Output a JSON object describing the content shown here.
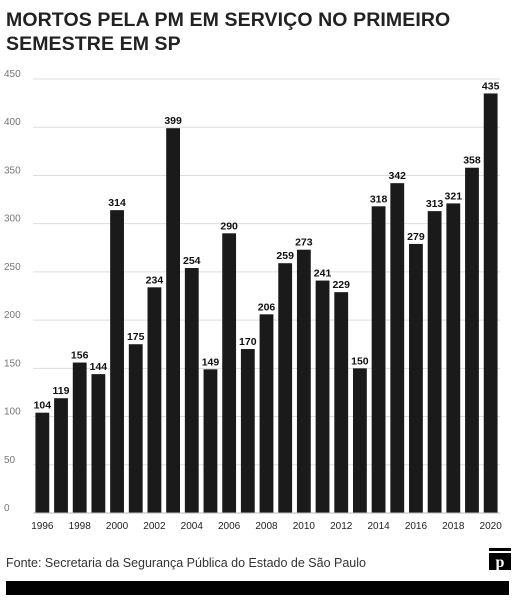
{
  "title": "MORTOS PELA PM EM SERVIÇO NO PRIMEIRO SEMESTRE EM SP",
  "source": "Fonte: Secretaria da Segurança Pública do Estado de São Paulo",
  "logo_letter": "p",
  "colors": {
    "bar": "#1a1a1a",
    "grid": "#dddddd",
    "footer": "#000000"
  },
  "chart_data": {
    "type": "bar",
    "title": "MORTOS PELA PM EM SERVIÇO NO PRIMEIRO SEMESTRE EM SP",
    "xlabel": "",
    "ylabel": "",
    "grid": true,
    "ylim": [
      0,
      450
    ],
    "yticks": [
      0,
      50,
      100,
      150,
      200,
      250,
      300,
      350,
      400,
      450
    ],
    "categories": [
      "1996",
      "1997",
      "1998",
      "1999",
      "2000",
      "2001",
      "2002",
      "2003",
      "2004",
      "2005",
      "2006",
      "2007",
      "2008",
      "2009",
      "2010",
      "2011",
      "2012",
      "2013",
      "2014",
      "2015",
      "2016",
      "2017",
      "2018",
      "2019",
      "2020"
    ],
    "xtick_labels": [
      "1996",
      "",
      "1998",
      "",
      "2000",
      "",
      "2002",
      "",
      "2004",
      "",
      "2006",
      "",
      "2008",
      "",
      "2010",
      "",
      "2012",
      "",
      "2014",
      "",
      "2016",
      "",
      "2018",
      "",
      "2020"
    ],
    "values": [
      104,
      119,
      156,
      144,
      314,
      175,
      234,
      399,
      254,
      149,
      290,
      170,
      206,
      259,
      273,
      241,
      229,
      150,
      318,
      342,
      279,
      313,
      321,
      358,
      435
    ]
  }
}
